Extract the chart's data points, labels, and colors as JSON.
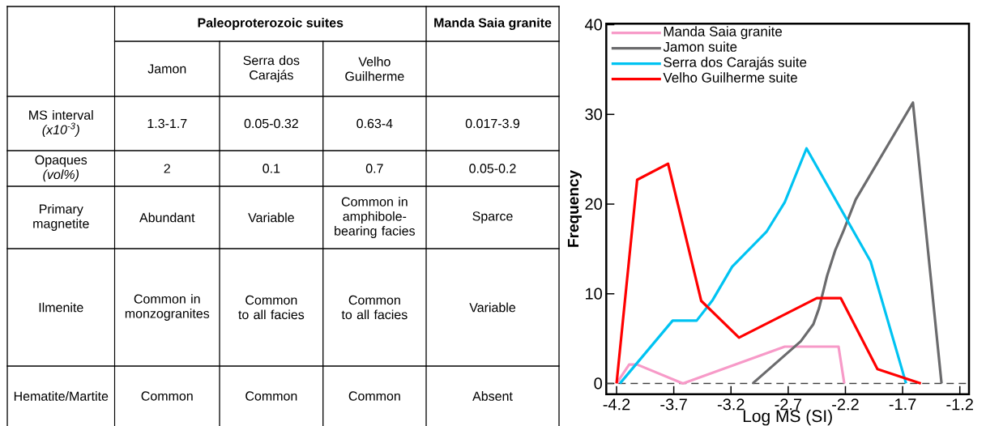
{
  "chart_data": [
    {
      "type": "other",
      "annotations": [
        "Paleoproterozoic suites",
        "Manda Saia granite"
      ],
      "categories": [
        "Jamon",
        "Serra dos Carajás",
        "Velho Guilherme",
        null
      ],
      "y_categories": [
        "MS interval *(x10$^{-3}$)*",
        "Opaques *(vol%)*",
        "Primary magnetite",
        "Ilmenite",
        "Hematite/Martite"
      ],
      "cell_labels": [
        [
          "1.3-1.7",
          "0.05-0.32",
          "0.63-4",
          "0.017-3.9"
        ],
        [
          "2",
          "0.1",
          "0.7",
          "0.05-0.2"
        ],
        [
          "Abundant",
          "Variable",
          "Common in amphibole-bearing facies",
          "Sparce"
        ],
        [
          "Common in monzogranites",
          "Common to all facies",
          "Common to all facies",
          "Variable"
        ],
        [
          "Common",
          "Common",
          "Common",
          "Absent"
        ]
      ]
    },
    {
      "type": "line",
      "xlabel": "Log MS (SI)",
      "ylabel": "Frequency",
      "xlim": [
        -4.29,
        -1.12
      ],
      "ylim": [
        -1.2,
        40.1
      ],
      "xticks": [
        -4.2,
        -3.7,
        -3.2,
        -2.7,
        -2.2,
        -1.7,
        -1.2
      ],
      "yticks": [
        0,
        10,
        20,
        30,
        40
      ],
      "legend": "top left",
      "ref_lines": [
        {
          "axis": "y",
          "value": 0,
          "color": "#404040",
          "line_style": "dashed"
        }
      ],
      "series": [
        {
          "name": "Manda Saia granite",
          "color": "#f79ac8",
          "x": [
            -4.2,
            -4.09,
            -4.02,
            -3.62,
            -2.73,
            -2.26,
            -2.21
          ],
          "values": [
            0,
            2.1,
            2.1,
            0,
            4.1,
            4.1,
            0
          ]
        },
        {
          "name": "Jamon suite",
          "color": "#6b6b6d",
          "x": [
            -3.01,
            -2.59,
            -2.48,
            -2.43,
            -2.36,
            -2.29,
            -2.22,
            -2.11,
            -1.61,
            -1.36
          ],
          "values": [
            0,
            4.7,
            6.6,
            8.4,
            12,
            14.8,
            16.9,
            20.5,
            31.3,
            0
          ]
        },
        {
          "name": "Serra dos Carajás suite",
          "color": "#00c3f2",
          "x": [
            -4.17,
            -3.71,
            -3.5,
            -3.36,
            -3.19,
            -2.89,
            -2.73,
            -2.54,
            -1.98,
            -1.67
          ],
          "values": [
            0,
            7,
            7,
            9.3,
            13,
            16.9,
            20.2,
            26.2,
            13.6,
            0
          ]
        },
        {
          "name": "Velho Guilherme suite",
          "color": "#ff0000",
          "x": [
            -4.2,
            -4.02,
            -3.75,
            -3.46,
            -3.13,
            -2.45,
            -2.24,
            -1.92,
            -1.54
          ],
          "values": [
            0,
            22.7,
            24.5,
            9.2,
            5.1,
            9.5,
            9.5,
            1.6,
            0
          ]
        }
      ]
    }
  ]
}
